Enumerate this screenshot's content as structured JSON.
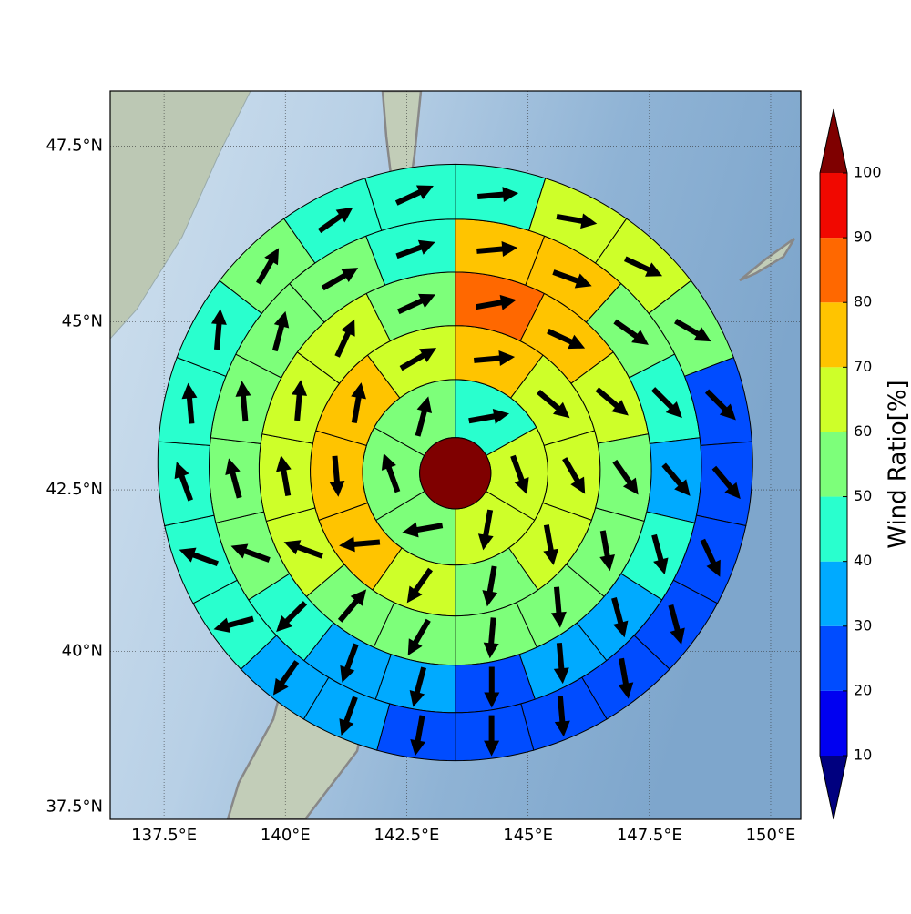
{
  "chart_data": {
    "type": "polar-grid-map",
    "projection": "mercator",
    "xlim": [
      136.39,
      150.62
    ],
    "ylim": [
      37.3,
      48.26
    ],
    "xticks": [
      {
        "value": 137.5,
        "label": "137.5°E"
      },
      {
        "value": 140,
        "label": "140°E"
      },
      {
        "value": 142.5,
        "label": "142.5°E"
      },
      {
        "value": 145,
        "label": "145°E"
      },
      {
        "value": 147.5,
        "label": "147.5°E"
      },
      {
        "value": 150,
        "label": "150°E"
      }
    ],
    "yticks": [
      {
        "value": 37.5,
        "label": "37.5°N"
      },
      {
        "value": 40,
        "label": "40°N"
      },
      {
        "value": 42.5,
        "label": "42.5°N"
      },
      {
        "value": 45,
        "label": "45°N"
      },
      {
        "value": 47.5,
        "label": "47.5°N"
      }
    ],
    "grid": true,
    "center": {
      "lon": 143.5,
      "lat": 42.75,
      "value": 110
    },
    "radii_km": [
      60,
      156,
      244,
      330,
      414,
      500
    ],
    "rings": [
      {
        "values": [
          45,
          65,
          65,
          55,
          55,
          55
        ],
        "directions": [
          80,
          160,
          190,
          260,
          340,
          15
        ]
      },
      {
        "values": [
          75,
          65,
          65,
          65,
          55,
          65,
          75,
          75,
          75,
          65
        ],
        "directions": [
          85,
          130,
          150,
          170,
          190,
          215,
          265,
          175,
          10,
          60
        ]
      },
      {
        "values": [
          85,
          75,
          65,
          55,
          55,
          55,
          55,
          55,
          55,
          65,
          65,
          65,
          65,
          55
        ],
        "directions": [
          80,
          115,
          130,
          145,
          170,
          175,
          185,
          210,
          40,
          290,
          350,
          5,
          25,
          65
        ]
      },
      {
        "values": [
          75,
          75,
          55,
          45,
          35,
          45,
          35,
          35,
          25,
          35,
          35,
          45,
          55,
          55,
          55,
          55,
          55,
          45
        ],
        "directions": [
          85,
          110,
          125,
          135,
          140,
          165,
          165,
          175,
          180,
          195,
          200,
          225,
          290,
          345,
          355,
          15,
          60,
          70
        ]
      },
      {
        "values": [
          45,
          65,
          65,
          55,
          25,
          25,
          25,
          25,
          25,
          25,
          25,
          25,
          35,
          35,
          45,
          45,
          45,
          45,
          45,
          55,
          45,
          45
        ],
        "directions": [
          85,
          100,
          115,
          120,
          135,
          140,
          155,
          165,
          170,
          175,
          180,
          190,
          200,
          215,
          255,
          290,
          340,
          355,
          5,
          30,
          55,
          65
        ]
      }
    ],
    "colorbar": {
      "label": "Wind Ratio[%]",
      "levels": [
        10,
        20,
        30,
        40,
        50,
        60,
        70,
        80,
        90,
        100
      ],
      "colors": [
        "#0000f1",
        "#004cff",
        "#00aaff",
        "#29ffce",
        "#7dff7a",
        "#ceff29",
        "#ffc400",
        "#ff6800",
        "#f10800"
      ],
      "under": "#00007f",
      "over": "#7f0000"
    }
  }
}
